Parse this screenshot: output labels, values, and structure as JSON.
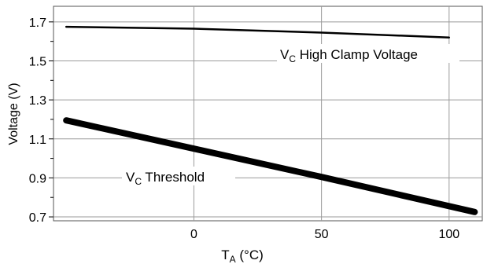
{
  "chart_data": {
    "type": "line",
    "xlabel": {
      "main": "T",
      "sub": "A",
      "suffix": " (°C)"
    },
    "ylabel": "Voltage (V)",
    "xlim": [
      -55,
      113
    ],
    "ylim": [
      0.68,
      1.78
    ],
    "x_ticks": [
      0,
      50,
      100
    ],
    "y_ticks": [
      0.7,
      0.9,
      1.1,
      1.3,
      1.5,
      1.7
    ],
    "x_tick_labels": [
      "0",
      "50",
      "100"
    ],
    "y_tick_labels": [
      "0.7",
      "0.9",
      "1.1",
      "1.3",
      "1.5",
      "1.7"
    ],
    "grid": true,
    "series": [
      {
        "name": "V_C High Clamp Voltage",
        "label": {
          "main": "V",
          "sub": "C",
          "suffix": " High Clamp Voltage"
        },
        "x": [
          -50,
          0,
          50,
          100
        ],
        "y": [
          1.675,
          1.665,
          1.645,
          1.62
        ],
        "color": "#000000"
      },
      {
        "name": "V_C Threshold",
        "label": {
          "main": "V",
          "sub": "C",
          "suffix": " Threshold"
        },
        "x": [
          -50,
          0,
          50,
          110
        ],
        "y": [
          1.195,
          1.05,
          0.905,
          0.725
        ],
        "color": "#000000"
      }
    ]
  }
}
